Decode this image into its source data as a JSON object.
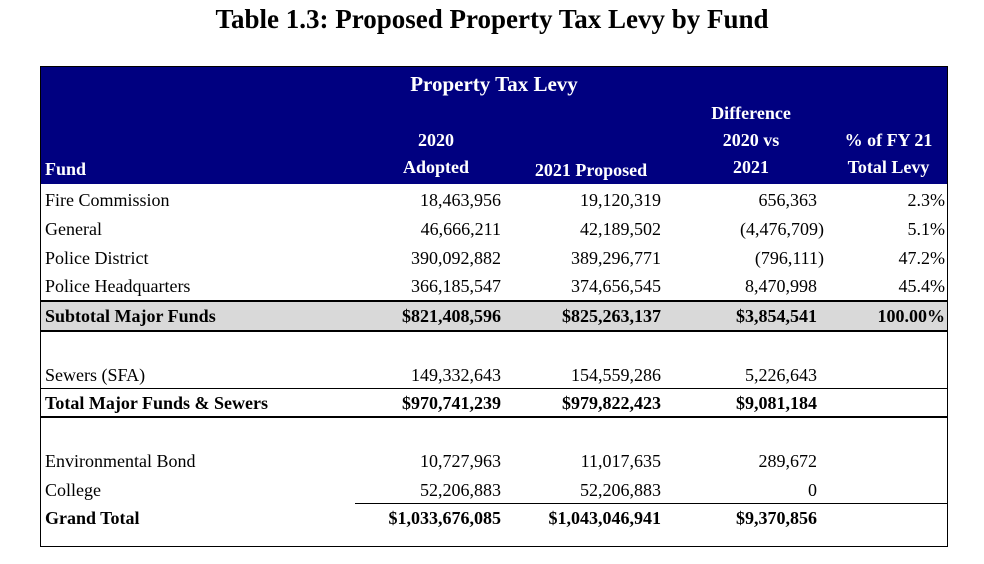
{
  "title": "Table 1.3: Proposed Property Tax Levy by Fund",
  "header": {
    "group": "Property Tax Levy",
    "fund": "Fund",
    "adopted_1": "2020",
    "adopted_2": "Adopted",
    "proposed": "2021 Proposed",
    "diff_1": "Difference",
    "diff_2": "2020 vs",
    "diff_3": "2021",
    "pct_1": "% of FY 21",
    "pct_2": "Total Levy"
  },
  "header_color": "#000080",
  "rows": [
    {
      "fund": "Fire Commission",
      "adopted": "18,463,956",
      "proposed": "19,120,319",
      "diff": "656,363",
      "pct": "2.3%"
    },
    {
      "fund": "General",
      "adopted": "46,666,211",
      "proposed": "42,189,502",
      "diff": "(4,476,709)",
      "pct": "5.1%"
    },
    {
      "fund": "Police District",
      "adopted": "390,092,882",
      "proposed": "389,296,771",
      "diff": "(796,111)",
      "pct": "47.2%"
    },
    {
      "fund": "Police Headquarters",
      "adopted": "366,185,547",
      "proposed": "374,656,545",
      "diff": "8,470,998",
      "pct": "45.4%"
    },
    {
      "fund": "Subtotal Major Funds",
      "adopted": "$821,408,596",
      "proposed": "$825,263,137",
      "diff": "$3,854,541",
      "pct": "100.00%"
    },
    {
      "fund": "Sewers (SFA)",
      "adopted": "149,332,643",
      "proposed": "154,559,286",
      "diff": "5,226,643"
    },
    {
      "fund": "Total Major Funds & Sewers",
      "adopted": "$970,741,239",
      "proposed": "$979,822,423",
      "diff": "$9,081,184"
    },
    {
      "fund": "Environmental Bond",
      "adopted": "10,727,963",
      "proposed": "11,017,635",
      "diff": "289,672"
    },
    {
      "fund": "College",
      "adopted": "52,206,883",
      "proposed": "52,206,883",
      "diff": "0"
    },
    {
      "fund": "Grand Total",
      "adopted": "$1,033,676,085",
      "proposed": "$1,043,046,941",
      "diff": "$9,370,856"
    }
  ]
}
